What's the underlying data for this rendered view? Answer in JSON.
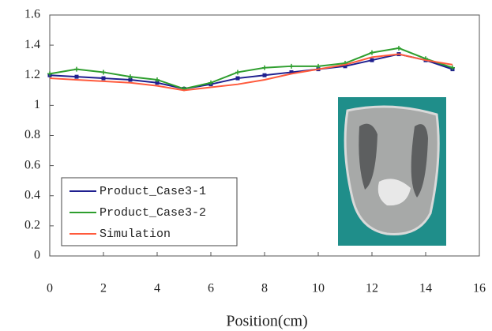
{
  "chart_data": {
    "type": "line",
    "x_label": "Position(cm)",
    "xlim": [
      0,
      16
    ],
    "xticks": [
      0,
      2,
      4,
      6,
      8,
      10,
      12,
      14,
      16
    ],
    "ylim": [
      0,
      1.6
    ],
    "yticks": [
      0,
      0.2,
      0.4,
      0.6,
      0.8,
      1,
      1.2,
      1.4,
      1.6
    ],
    "grid": false,
    "legend": "lower left",
    "x": [
      0,
      1,
      2,
      3,
      4,
      5,
      6,
      7,
      8,
      9,
      10,
      11,
      12,
      13,
      14,
      15
    ],
    "series": [
      {
        "name": "Product_Case3-1",
        "color": "#1f1f8f",
        "values": [
          1.2,
          1.19,
          1.18,
          1.17,
          1.15,
          1.11,
          1.14,
          1.18,
          1.2,
          1.22,
          1.24,
          1.26,
          1.3,
          1.34,
          1.3,
          1.24
        ]
      },
      {
        "name": "Product_Case3-2",
        "color": "#2e9e2e",
        "values": [
          1.21,
          1.24,
          1.22,
          1.19,
          1.17,
          1.11,
          1.15,
          1.22,
          1.25,
          1.26,
          1.26,
          1.28,
          1.35,
          1.38,
          1.31,
          1.25
        ]
      },
      {
        "name": "Simulation",
        "color": "#ff5a3c",
        "values": [
          1.18,
          1.17,
          1.16,
          1.15,
          1.13,
          1.1,
          1.12,
          1.14,
          1.17,
          1.21,
          1.24,
          1.27,
          1.32,
          1.34,
          1.3,
          1.27
        ]
      }
    ]
  }
}
